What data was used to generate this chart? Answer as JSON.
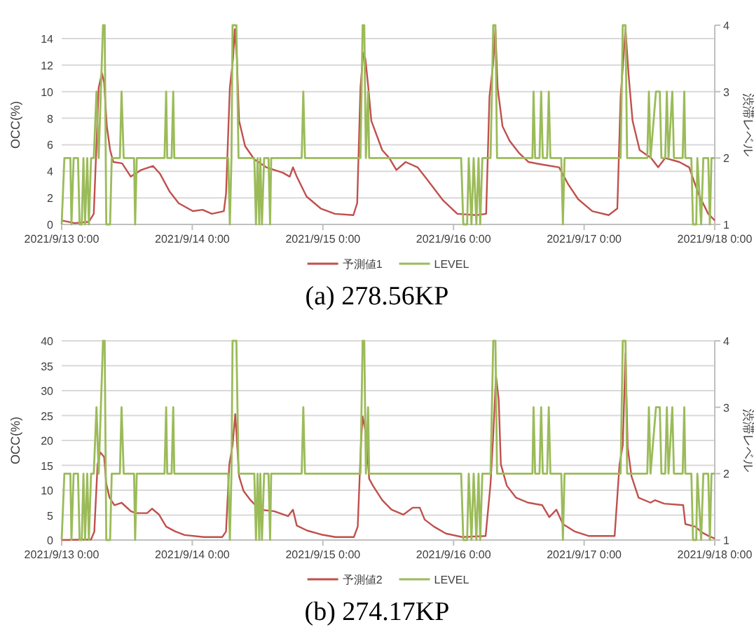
{
  "chart_data": [
    {
      "type": "line",
      "title": "(a) 278.56KP",
      "ylabel": "OCC(%)",
      "y2label": "渋滞レベル",
      "grid": "y",
      "legend": "bottom",
      "xlim": [
        "2021-09-13T00:00",
        "2021-09-18T00:00"
      ],
      "xticks": [
        {
          "value": "2021-09-13T00:00",
          "label": "2021/9/13 0:00"
        },
        {
          "value": "2021-09-14T00:00",
          "label": "2021/9/14 0:00"
        },
        {
          "value": "2021-09-15T00:00",
          "label": "2021/9/15 0:00"
        },
        {
          "value": "2021-09-16T00:00",
          "label": "2021/9/16 0:00"
        },
        {
          "value": "2021-09-17T00:00",
          "label": "2021/9/17 0:00"
        },
        {
          "value": "2021-09-18T00:00",
          "label": "2021/9/18 0:00"
        }
      ],
      "ylim": [
        0,
        15
      ],
      "yticks": [
        0,
        2,
        4,
        6,
        8,
        10,
        12,
        14
      ],
      "y2lim": [
        1,
        4
      ],
      "y2ticks": [
        1,
        2,
        3,
        4
      ],
      "series": [
        {
          "name": "予測値1",
          "color": "#c0504d",
          "x": [
            "2021-09-13T00:00",
            "2021-09-13T02:24",
            "2021-09-13T05:00",
            "2021-09-13T05:54",
            "2021-09-13T06:48",
            "2021-09-13T07:24",
            "2021-09-13T07:48",
            "2021-09-13T08:18",
            "2021-09-13T08:54",
            "2021-09-13T09:30",
            "2021-09-13T11:06",
            "2021-09-13T12:42",
            "2021-09-13T14:36",
            "2021-09-13T16:48",
            "2021-09-13T18:06",
            "2021-09-13T19:48",
            "2021-09-13T21:30",
            "2021-09-14T00:06",
            "2021-09-14T01:54",
            "2021-09-14T03:36",
            "2021-09-14T05:48",
            "2021-09-14T06:12",
            "2021-09-14T06:54",
            "2021-09-14T07:30",
            "2021-09-14T07:48",
            "2021-09-14T08:12",
            "2021-09-14T08:36",
            "2021-09-14T09:42",
            "2021-09-14T11:24",
            "2021-09-14T13:36",
            "2021-09-14T16:36",
            "2021-09-14T17:54",
            "2021-09-14T18:30",
            "2021-09-14T19:12",
            "2021-09-14T21:00",
            "2021-09-14T23:36",
            "2021-09-15T02:12",
            "2021-09-15T05:36",
            "2021-09-15T06:18",
            "2021-09-15T06:54",
            "2021-09-15T07:24",
            "2021-09-15T07:48",
            "2021-09-15T08:18",
            "2021-09-15T08:54",
            "2021-09-15T10:54",
            "2021-09-15T12:12",
            "2021-09-15T13:30",
            "2021-09-15T15:12",
            "2021-09-15T17:24",
            "2021-09-15T19:30",
            "2021-09-15T22:06",
            "2021-09-16T00:42",
            "2021-09-16T04:12",
            "2021-09-16T06:00",
            "2021-09-16T06:36",
            "2021-09-16T07:18",
            "2021-09-16T07:42",
            "2021-09-16T08:06",
            "2021-09-16T09:00",
            "2021-09-16T10:18",
            "2021-09-16T12:00",
            "2021-09-16T13:48",
            "2021-09-16T16:24",
            "2021-09-16T19:24",
            "2021-09-16T21:06",
            "2021-09-16T22:54",
            "2021-09-17T01:30",
            "2021-09-17T04:30",
            "2021-09-17T06:06",
            "2021-09-17T06:42",
            "2021-09-17T07:06",
            "2021-09-17T07:36",
            "2021-09-17T08:12",
            "2021-09-17T08:54",
            "2021-09-17T10:12",
            "2021-09-17T12:18",
            "2021-09-17T13:36",
            "2021-09-17T14:54",
            "2021-09-17T17:30",
            "2021-09-17T19:18",
            "2021-09-17T21:00",
            "2021-09-17T22:48",
            "2021-09-18T00:00"
          ],
          "values": [
            0.3,
            0.1,
            0.2,
            0.8,
            10.3,
            11.4,
            10.7,
            7.4,
            5.6,
            4.7,
            4.6,
            3.6,
            4.1,
            4.4,
            3.8,
            2.5,
            1.6,
            1.0,
            1.1,
            0.8,
            1.0,
            2.3,
            10.3,
            12.5,
            14.7,
            12.5,
            7.8,
            5.9,
            4.9,
            4.3,
            3.9,
            3.6,
            4.3,
            3.6,
            2.1,
            1.2,
            0.8,
            0.7,
            1.6,
            10.3,
            12.9,
            12.5,
            10.5,
            7.8,
            5.6,
            5.0,
            4.1,
            4.7,
            4.3,
            3.2,
            1.8,
            0.8,
            0.7,
            0.8,
            9.6,
            12.2,
            14.7,
            10.3,
            7.4,
            6.3,
            5.4,
            4.7,
            4.5,
            4.3,
            3.0,
            1.9,
            1.0,
            0.7,
            1.2,
            9.6,
            11.8,
            14.7,
            11.1,
            7.8,
            5.6,
            5.0,
            4.3,
            5.0,
            4.7,
            4.3,
            2.3,
            0.8,
            0.3
          ]
        },
        {
          "name": "LEVEL",
          "color": "#9bbb59",
          "axis": "y2",
          "x": [
            "2021-09-13T00:00",
            "2021-09-13T00:30",
            "2021-09-13T01:36",
            "2021-09-13T01:48",
            "2021-09-13T02:12",
            "2021-09-13T03:00",
            "2021-09-13T03:18",
            "2021-09-13T03:42",
            "2021-09-13T04:00",
            "2021-09-13T04:18",
            "2021-09-13T04:42",
            "2021-09-13T05:00",
            "2021-09-13T05:24",
            "2021-09-13T05:54",
            "2021-09-13T06:24",
            "2021-09-13T06:48",
            "2021-09-13T07:12",
            "2021-09-13T07:36",
            "2021-09-13T07:54",
            "2021-09-13T08:12",
            "2021-09-13T08:54",
            "2021-09-13T09:12",
            "2021-09-13T10:42",
            "2021-09-13T11:00",
            "2021-09-13T11:24",
            "2021-09-13T13:18",
            "2021-09-13T13:30",
            "2021-09-13T13:48",
            "2021-09-13T18:54",
            "2021-09-13T19:12",
            "2021-09-13T19:24",
            "2021-09-13T20:12",
            "2021-09-13T20:30",
            "2021-09-13T20:42",
            "2021-09-14T06:36",
            "2021-09-14T06:54",
            "2021-09-14T07:12",
            "2021-09-14T07:24",
            "2021-09-14T08:06",
            "2021-09-14T08:30",
            "2021-09-14T11:24",
            "2021-09-14T11:42",
            "2021-09-14T12:00",
            "2021-09-14T12:18",
            "2021-09-14T12:30",
            "2021-09-14T12:48",
            "2021-09-14T13:12",
            "2021-09-14T14:00",
            "2021-09-14T14:18",
            "2021-09-14T14:30",
            "2021-09-14T20:06",
            "2021-09-14T20:24",
            "2021-09-14T20:42",
            "2021-09-15T06:54",
            "2021-09-15T07:18",
            "2021-09-15T07:36",
            "2021-09-15T07:54",
            "2021-09-15T08:18",
            "2021-09-15T08:30",
            "2021-09-16T01:24",
            "2021-09-16T01:48",
            "2021-09-16T02:30",
            "2021-09-16T02:48",
            "2021-09-16T03:18",
            "2021-09-16T03:42",
            "2021-09-16T04:12",
            "2021-09-16T04:36",
            "2021-09-16T04:54",
            "2021-09-16T05:18",
            "2021-09-16T06:48",
            "2021-09-16T07:18",
            "2021-09-16T07:42",
            "2021-09-16T08:00",
            "2021-09-16T14:30",
            "2021-09-16T14:42",
            "2021-09-16T15:00",
            "2021-09-16T15:48",
            "2021-09-16T16:06",
            "2021-09-16T16:24",
            "2021-09-16T17:12",
            "2021-09-16T17:30",
            "2021-09-16T17:48",
            "2021-09-16T19:48",
            "2021-09-16T20:06",
            "2021-09-16T20:24",
            "2021-09-17T06:42",
            "2021-09-17T07:06",
            "2021-09-17T07:36",
            "2021-09-17T07:54",
            "2021-09-17T11:36",
            "2021-09-17T11:54",
            "2021-09-17T12:12",
            "2021-09-17T13:12",
            "2021-09-17T13:54",
            "2021-09-17T14:12",
            "2021-09-17T14:54",
            "2021-09-17T15:12",
            "2021-09-17T15:30",
            "2021-09-17T16:12",
            "2021-09-17T16:30",
            "2021-09-17T18:06",
            "2021-09-17T18:24",
            "2021-09-17T18:36",
            "2021-09-17T19:42",
            "2021-09-17T20:00",
            "2021-09-17T20:36",
            "2021-09-17T20:48",
            "2021-09-17T21:30",
            "2021-09-17T21:54",
            "2021-09-17T22:48",
            "2021-09-17T23:06",
            "2021-09-17T23:24",
            "2021-09-18T00:00"
          ],
          "values": [
            1,
            2,
            2,
            1,
            2,
            2,
            1,
            1,
            2,
            1,
            2,
            1,
            2,
            2,
            3,
            2,
            3,
            4,
            4,
            1,
            1,
            2,
            2,
            3,
            2,
            2,
            1,
            2,
            2,
            3,
            2,
            2,
            3,
            2,
            2,
            1,
            2,
            4,
            4,
            2,
            2,
            1,
            2,
            1,
            2,
            1,
            2,
            2,
            1,
            2,
            2,
            3,
            2,
            2,
            4,
            4,
            2,
            3,
            2,
            2,
            1,
            1,
            2,
            1,
            2,
            1,
            2,
            1,
            2,
            2,
            4,
            4,
            2,
            2,
            3,
            2,
            2,
            3,
            2,
            2,
            3,
            2,
            2,
            1,
            2,
            2,
            4,
            4,
            2,
            2,
            3,
            2,
            3,
            3,
            2,
            2,
            3,
            2,
            3,
            2,
            2,
            3,
            2,
            2,
            1,
            1,
            2,
            1,
            2,
            2,
            1,
            2,
            2
          ]
        }
      ]
    },
    {
      "type": "line",
      "title": "(b) 274.17KP",
      "ylabel": "OCC(%)",
      "y2label": "渋滞レベル",
      "grid": "y",
      "legend": "bottom",
      "xlim": [
        "2021-09-13T00:00",
        "2021-09-18T00:00"
      ],
      "xticks": [
        {
          "value": "2021-09-13T00:00",
          "label": "2021/9/13 0:00"
        },
        {
          "value": "2021-09-14T00:00",
          "label": "2021/9/14 0:00"
        },
        {
          "value": "2021-09-15T00:00",
          "label": "2021/9/15 0:00"
        },
        {
          "value": "2021-09-16T00:00",
          "label": "2021/9/16 0:00"
        },
        {
          "value": "2021-09-17T00:00",
          "label": "2021/9/17 0:00"
        },
        {
          "value": "2021-09-18T00:00",
          "label": "2021/9/18 0:00"
        }
      ],
      "ylim": [
        0,
        40
      ],
      "yticks": [
        0,
        5,
        10,
        15,
        20,
        25,
        30,
        35,
        40
      ],
      "y2lim": [
        1,
        4
      ],
      "y2ticks": [
        1,
        2,
        3,
        4
      ],
      "series": [
        {
          "name": "予測値2",
          "color": "#c0504d",
          "x": [
            "2021-09-13T00:00",
            "2021-09-13T05:24",
            "2021-09-13T06:00",
            "2021-09-13T06:36",
            "2021-09-13T07:06",
            "2021-09-13T07:48",
            "2021-09-13T08:12",
            "2021-09-13T08:48",
            "2021-09-13T09:42",
            "2021-09-13T11:00",
            "2021-09-13T12:42",
            "2021-09-13T13:36",
            "2021-09-13T15:42",
            "2021-09-13T16:36",
            "2021-09-13T17:54",
            "2021-09-13T19:12",
            "2021-09-13T20:54",
            "2021-09-13T22:36",
            "2021-09-14T02:06",
            "2021-09-14T05:30",
            "2021-09-14T06:12",
            "2021-09-14T06:48",
            "2021-09-14T07:24",
            "2021-09-14T07:54",
            "2021-09-14T08:18",
            "2021-09-14T08:36",
            "2021-09-14T09:24",
            "2021-09-14T10:42",
            "2021-09-14T12:24",
            "2021-09-14T15:00",
            "2021-09-14T17:36",
            "2021-09-14T18:30",
            "2021-09-14T19:12",
            "2021-09-14T21:06",
            "2021-09-14T23:42",
            "2021-09-15T02:18",
            "2021-09-15T05:42",
            "2021-09-15T06:24",
            "2021-09-15T07:00",
            "2021-09-15T07:18",
            "2021-09-15T07:54",
            "2021-09-15T08:30",
            "2021-09-15T09:12",
            "2021-09-15T10:54",
            "2021-09-15T12:36",
            "2021-09-15T14:48",
            "2021-09-15T16:30",
            "2021-09-15T17:48",
            "2021-09-15T18:42",
            "2021-09-15T20:24",
            "2021-09-15T22:36",
            "2021-09-16T01:36",
            "2021-09-16T05:54",
            "2021-09-16T06:48",
            "2021-09-16T07:18",
            "2021-09-16T07:48",
            "2021-09-16T08:18",
            "2021-09-16T08:42",
            "2021-09-16T09:48",
            "2021-09-16T11:30",
            "2021-09-16T13:42",
            "2021-09-16T16:18",
            "2021-09-16T17:36",
            "2021-09-16T18:54",
            "2021-09-16T20:06",
            "2021-09-16T22:18",
            "2021-09-17T00:54",
            "2021-09-17T05:36",
            "2021-09-17T06:30",
            "2021-09-17T07:06",
            "2021-09-17T07:36",
            "2021-09-17T08:00",
            "2021-09-17T08:42",
            "2021-09-17T10:00",
            "2021-09-17T12:12",
            "2021-09-17T13:00",
            "2021-09-17T14:42",
            "2021-09-17T18:12",
            "2021-09-17T18:36",
            "2021-09-17T20:24",
            "2021-09-17T21:42",
            "2021-09-17T22:54",
            "2021-09-18T00:00"
          ],
          "values": [
            0,
            0.1,
            1.7,
            15.2,
            17.6,
            16.7,
            11.3,
            8.5,
            7.0,
            7.5,
            5.8,
            5.4,
            5.4,
            6.3,
            5.1,
            2.7,
            1.7,
            1.0,
            0.6,
            0.6,
            1.7,
            15.2,
            19.0,
            25.3,
            18.1,
            12.8,
            9.9,
            8.0,
            6.1,
            5.8,
            4.8,
            6.1,
            2.9,
            1.9,
            1.1,
            0.6,
            0.6,
            2.7,
            19.5,
            24.8,
            21.4,
            12.3,
            10.9,
            8.0,
            6.1,
            5.1,
            6.5,
            6.5,
            4.1,
            2.7,
            1.3,
            0.6,
            0.8,
            11.3,
            21.0,
            33.0,
            28.2,
            15.2,
            10.9,
            8.5,
            7.5,
            7.0,
            4.6,
            6.1,
            3.2,
            1.7,
            0.8,
            0.8,
            15.2,
            19.0,
            37.5,
            18.6,
            12.8,
            8.5,
            7.5,
            8.0,
            7.3,
            7.0,
            3.2,
            2.7,
            1.5,
            0.8,
            0.3
          ]
        },
        {
          "name": "LEVEL",
          "color": "#9bbb59",
          "axis": "y2",
          "x": [
            "2021-09-13T00:00",
            "2021-09-13T00:30",
            "2021-09-13T01:36",
            "2021-09-13T01:48",
            "2021-09-13T02:12",
            "2021-09-13T03:00",
            "2021-09-13T03:18",
            "2021-09-13T03:42",
            "2021-09-13T04:00",
            "2021-09-13T04:18",
            "2021-09-13T04:42",
            "2021-09-13T05:00",
            "2021-09-13T05:24",
            "2021-09-13T05:54",
            "2021-09-13T06:24",
            "2021-09-13T06:48",
            "2021-09-13T07:12",
            "2021-09-13T07:36",
            "2021-09-13T07:54",
            "2021-09-13T08:12",
            "2021-09-13T08:54",
            "2021-09-13T09:12",
            "2021-09-13T10:42",
            "2021-09-13T11:00",
            "2021-09-13T11:24",
            "2021-09-13T13:18",
            "2021-09-13T13:30",
            "2021-09-13T13:48",
            "2021-09-13T18:54",
            "2021-09-13T19:12",
            "2021-09-13T19:24",
            "2021-09-13T20:12",
            "2021-09-13T20:30",
            "2021-09-13T20:42",
            "2021-09-14T06:36",
            "2021-09-14T06:54",
            "2021-09-14T07:12",
            "2021-09-14T07:24",
            "2021-09-14T08:06",
            "2021-09-14T08:30",
            "2021-09-14T11:24",
            "2021-09-14T11:42",
            "2021-09-14T12:00",
            "2021-09-14T12:18",
            "2021-09-14T12:30",
            "2021-09-14T12:48",
            "2021-09-14T13:12",
            "2021-09-14T14:00",
            "2021-09-14T14:18",
            "2021-09-14T14:30",
            "2021-09-14T20:06",
            "2021-09-14T20:24",
            "2021-09-14T20:42",
            "2021-09-15T06:54",
            "2021-09-15T07:18",
            "2021-09-15T07:36",
            "2021-09-15T07:54",
            "2021-09-15T08:18",
            "2021-09-15T08:30",
            "2021-09-16T01:24",
            "2021-09-16T01:48",
            "2021-09-16T02:30",
            "2021-09-16T02:48",
            "2021-09-16T03:18",
            "2021-09-16T03:42",
            "2021-09-16T04:12",
            "2021-09-16T04:36",
            "2021-09-16T04:54",
            "2021-09-16T05:18",
            "2021-09-16T06:48",
            "2021-09-16T07:18",
            "2021-09-16T07:42",
            "2021-09-16T08:00",
            "2021-09-16T14:30",
            "2021-09-16T14:42",
            "2021-09-16T15:00",
            "2021-09-16T15:48",
            "2021-09-16T16:06",
            "2021-09-16T16:24",
            "2021-09-16T17:12",
            "2021-09-16T17:30",
            "2021-09-16T17:48",
            "2021-09-16T19:48",
            "2021-09-16T20:06",
            "2021-09-16T20:24",
            "2021-09-17T06:42",
            "2021-09-17T07:06",
            "2021-09-17T07:36",
            "2021-09-17T07:54",
            "2021-09-17T11:36",
            "2021-09-17T11:54",
            "2021-09-17T12:12",
            "2021-09-17T13:12",
            "2021-09-17T13:54",
            "2021-09-17T14:12",
            "2021-09-17T14:54",
            "2021-09-17T15:12",
            "2021-09-17T15:30",
            "2021-09-17T16:12",
            "2021-09-17T16:30",
            "2021-09-17T18:06",
            "2021-09-17T18:24",
            "2021-09-17T18:36",
            "2021-09-17T19:42",
            "2021-09-17T20:00",
            "2021-09-17T20:36",
            "2021-09-17T20:48",
            "2021-09-17T21:30",
            "2021-09-17T21:54",
            "2021-09-17T22:48",
            "2021-09-17T23:06",
            "2021-09-17T23:24",
            "2021-09-18T00:00"
          ],
          "values": [
            1,
            2,
            2,
            1,
            2,
            2,
            1,
            1,
            2,
            1,
            2,
            1,
            2,
            2,
            3,
            2,
            3,
            4,
            4,
            1,
            1,
            2,
            2,
            3,
            2,
            2,
            1,
            2,
            2,
            3,
            2,
            2,
            3,
            2,
            2,
            1,
            2,
            4,
            4,
            2,
            2,
            1,
            2,
            1,
            2,
            1,
            2,
            2,
            1,
            2,
            2,
            3,
            2,
            2,
            4,
            4,
            2,
            3,
            2,
            2,
            1,
            1,
            2,
            1,
            2,
            1,
            2,
            1,
            2,
            2,
            4,
            4,
            2,
            2,
            3,
            2,
            2,
            3,
            2,
            2,
            3,
            2,
            2,
            1,
            2,
            2,
            4,
            4,
            2,
            2,
            3,
            2,
            3,
            3,
            2,
            2,
            3,
            2,
            3,
            2,
            2,
            3,
            2,
            2,
            1,
            1,
            2,
            1,
            2,
            2,
            1,
            2,
            2
          ]
        }
      ]
    }
  ]
}
